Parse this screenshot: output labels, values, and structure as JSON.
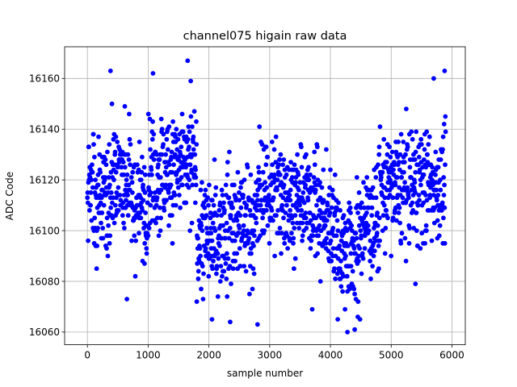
{
  "chart_data": {
    "type": "scatter",
    "title": "channel075 higain raw data",
    "xlabel": "sample number",
    "ylabel": "ADC Code",
    "xlim": [
      -375,
      6220
    ],
    "ylim": [
      16055,
      16172.5
    ],
    "xticks": [
      0,
      1000,
      2000,
      3000,
      4000,
      5000,
      6000
    ],
    "yticks": [
      16060,
      16080,
      16100,
      16120,
      16140,
      16160
    ],
    "grid": true,
    "marker": "circle",
    "color": "#0000ff",
    "n_samples": 5900,
    "segments": [
      {
        "x": [
          0,
          400
        ],
        "mean": 16112,
        "sd": 11
      },
      {
        "x": [
          400,
          700
        ],
        "mean": 16122,
        "sd": 12
      },
      {
        "x": [
          700,
          1000
        ],
        "mean": 16111,
        "sd": 10
      },
      {
        "x": [
          1000,
          1300
        ],
        "mean": 16123,
        "sd": 12
      },
      {
        "x": [
          1300,
          1800
        ],
        "mean": 16124,
        "sd": 11
      },
      {
        "x": [
          1800,
          2200
        ],
        "mean": 16098,
        "sd": 11
      },
      {
        "x": [
          2200,
          2800
        ],
        "mean": 16103,
        "sd": 12
      },
      {
        "x": [
          2800,
          3300
        ],
        "mean": 16115,
        "sd": 11
      },
      {
        "x": [
          3300,
          3800
        ],
        "mean": 16112,
        "sd": 10
      },
      {
        "x": [
          3800,
          4100
        ],
        "mean": 16104,
        "sd": 11
      },
      {
        "x": [
          4100,
          4500
        ],
        "mean": 16093,
        "sd": 11
      },
      {
        "x": [
          4500,
          4800
        ],
        "mean": 16104,
        "sd": 11
      },
      {
        "x": [
          4800,
          5300
        ],
        "mean": 16117,
        "sd": 11
      },
      {
        "x": [
          5300,
          5900
        ],
        "mean": 16118,
        "sd": 11
      }
    ],
    "notable_points": [
      {
        "x": 380,
        "y": 16163
      },
      {
        "x": 1080,
        "y": 16162
      },
      {
        "x": 1650,
        "y": 16167
      },
      {
        "x": 1700,
        "y": 16159
      },
      {
        "x": 5700,
        "y": 16160
      },
      {
        "x": 5880,
        "y": 16163
      },
      {
        "x": 2050,
        "y": 16065
      },
      {
        "x": 2350,
        "y": 16064
      },
      {
        "x": 2800,
        "y": 16063
      },
      {
        "x": 4280,
        "y": 16060
      },
      {
        "x": 4400,
        "y": 16061
      },
      {
        "x": 4450,
        "y": 16066
      },
      {
        "x": 650,
        "y": 16073
      },
      {
        "x": 3700,
        "y": 16069
      },
      {
        "x": 5400,
        "y": 16079
      }
    ]
  }
}
